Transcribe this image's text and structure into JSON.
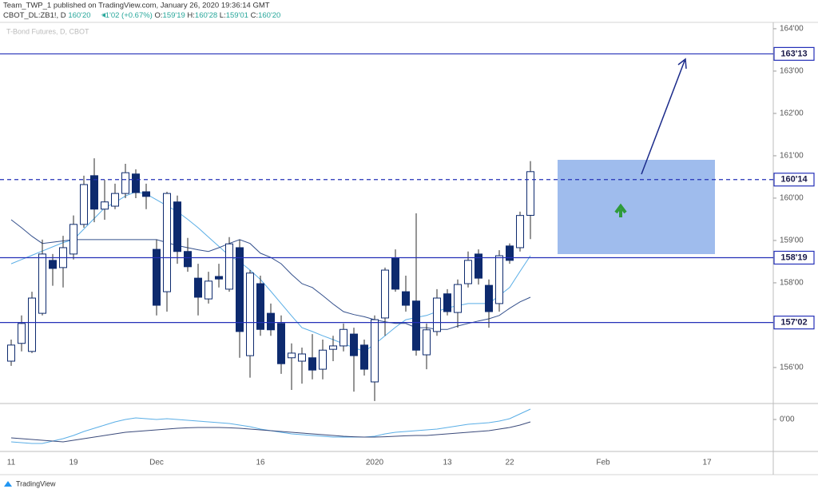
{
  "header": {
    "publisher": "Team_TWP_1 published on TradingView.com, January 26, 2020 19:36:14 GMT",
    "symbol": "CBOT_DL:ZB1!, D",
    "last": "160'20",
    "change": "+1'02 (+0.67%)",
    "o_label": "O:",
    "o": "159'19",
    "h_label": "H:",
    "h": "160'28",
    "l_label": "L:",
    "l": "159'01",
    "c_label": "C:",
    "c": "160'20"
  },
  "footer": {
    "brand": "TradingView"
  },
  "chart_data": [
    {
      "type": "candlestick",
      "title": "T-Bond Futures, D, CBOT",
      "categories": [
        "11",
        null,
        null,
        null,
        null,
        null,
        "19",
        null,
        null,
        null,
        null,
        null,
        null,
        null,
        "Dec",
        null,
        null,
        null,
        null,
        null,
        null,
        null,
        null,
        null,
        "16",
        null,
        null,
        null,
        null,
        null,
        null,
        null,
        null,
        null,
        null,
        "2020",
        null,
        null,
        null,
        null,
        null,
        null,
        "13",
        null,
        null,
        null,
        null,
        null,
        "22",
        null,
        null,
        null,
        null,
        null,
        null,
        null,
        null,
        "Feb",
        null,
        null,
        null,
        null,
        null,
        null,
        null,
        null,
        null,
        "17"
      ],
      "open": [
        156.15,
        156.57,
        156.38,
        157.28,
        158.53,
        158.36,
        158.68,
        159.38,
        160.53,
        159.74,
        159.81,
        160.11,
        160.57,
        160.15,
        158.79,
        157.79,
        159.91,
        158.74,
        158.11,
        157.62,
        158.15,
        157.85,
        158.83,
        156.28,
        157.98,
        157.28,
        157.04,
        156.23,
        156.15,
        156.23,
        155.96,
        156.43,
        156.51,
        156.79,
        156.53,
        155.66,
        157.17,
        158.59,
        157.79,
        157.57,
        156.3,
        156.85,
        157.74,
        157.3,
        157.98,
        158.68,
        157.94,
        157.51,
        158.87,
        158.83,
        159.59375,
        null,
        null,
        null,
        null,
        null,
        null,
        null,
        null,
        null,
        null,
        null,
        null,
        null,
        null,
        null,
        null,
        null
      ],
      "high": [
        156.66,
        157.23,
        157.79,
        159.02,
        158.68,
        159.11,
        159.59,
        160.53,
        160.94,
        160.43,
        160.34,
        160.81,
        160.68,
        160.34,
        159.02,
        160.15,
        160.06,
        159.06,
        158.45,
        158.26,
        158.45,
        159.08,
        159.02,
        158.3,
        158.17,
        157.51,
        157.23,
        156.57,
        156.47,
        156.79,
        156.66,
        156.75,
        157.04,
        156.94,
        156.66,
        157.23,
        158.36,
        158.79,
        158.17,
        159.64,
        157.04,
        157.85,
        157.85,
        158.08,
        158.74,
        158.79,
        158.08,
        158.77,
        158.93,
        159.68,
        160.875,
        null,
        null,
        null,
        null,
        null,
        null,
        null,
        null,
        null,
        null,
        null,
        null,
        null,
        null,
        null,
        null,
        null
      ],
      "low": [
        156.04,
        156.38,
        156.34,
        157.23,
        157.93,
        157.89,
        158.55,
        159.3,
        159.43,
        159.49,
        159.74,
        160.0,
        160.0,
        159.74,
        157.23,
        157.32,
        158.45,
        158.26,
        157.23,
        157.51,
        157.89,
        157.79,
        156.23,
        155.76,
        156.75,
        156.75,
        155.85,
        155.47,
        155.62,
        155.72,
        155.72,
        156.15,
        156.38,
        155.43,
        155.81,
        155.21,
        156.75,
        157.79,
        157.32,
        156.28,
        155.96,
        156.75,
        157.23,
        156.94,
        157.89,
        157.96,
        156.94,
        157.32,
        158.45,
        158.74,
        159.03125,
        null,
        null,
        null,
        null,
        null,
        null,
        null,
        null,
        null,
        null,
        null,
        null,
        null,
        null,
        null,
        null,
        null
      ],
      "close": [
        156.53,
        157.04,
        157.64,
        158.68,
        158.34,
        158.83,
        159.38,
        160.32,
        159.74,
        159.91,
        160.11,
        160.6,
        160.13,
        160.04,
        157.47,
        160.11,
        158.74,
        158.38,
        157.66,
        158.04,
        158.09,
        158.92,
        156.85,
        158.23,
        156.9,
        156.89,
        156.09,
        156.34,
        156.32,
        155.94,
        156.41,
        156.51,
        156.9,
        156.28,
        155.96,
        157.13,
        158.3,
        157.85,
        157.47,
        156.41,
        156.89,
        157.64,
        157.32,
        157.96,
        158.53,
        158.11,
        157.32,
        158.64,
        158.53,
        159.59,
        160.625,
        null,
        null,
        null,
        null,
        null,
        null,
        null,
        null,
        null,
        null,
        null,
        null,
        null,
        null,
        null,
        null,
        null
      ],
      "up_color": "#ffffff",
      "down_color": "#0d2a6e",
      "border_color": "#0d2a6e",
      "wick_color": "#2b2b2b",
      "series": [
        {
          "color": "#5aaee6",
          "values": [
            158.45,
            158.55,
            158.65,
            158.75,
            158.85,
            158.95,
            159.02,
            159.27,
            159.52,
            159.77,
            159.9,
            160.05,
            160.15,
            160.1,
            159.96,
            159.82,
            159.68,
            159.5,
            159.3,
            159.08,
            158.86,
            158.64,
            158.5,
            158.3,
            158.08,
            157.8,
            157.51,
            157.22,
            156.94,
            156.85,
            156.75,
            156.66,
            156.56,
            156.47,
            156.38,
            156.55,
            156.75,
            156.95,
            157.13,
            157.18,
            157.23,
            157.32,
            157.41,
            157.46,
            157.51,
            157.51,
            157.51,
            157.7,
            157.89,
            158.27,
            158.64,
            null,
            null,
            null,
            null,
            null,
            null,
            null,
            null,
            null,
            null,
            null,
            null,
            null,
            null,
            null,
            null,
            null
          ]
        },
        {
          "color": "#34508c",
          "values": [
            159.49,
            159.3,
            159.1,
            158.93,
            158.96,
            158.99,
            159.02,
            159.02,
            159.02,
            159.02,
            159.02,
            159.02,
            159.02,
            159.02,
            159.02,
            158.95,
            158.88,
            158.83,
            158.78,
            158.74,
            158.83,
            158.93,
            159.02,
            158.93,
            158.7,
            158.6,
            158.45,
            158.2,
            157.98,
            157.89,
            157.7,
            157.5,
            157.32,
            157.25,
            157.2,
            157.13,
            157.08,
            157.04,
            157.04,
            156.94,
            156.94,
            156.9,
            156.9,
            156.98,
            157.04,
            157.1,
            157.15,
            157.23,
            157.4,
            157.55,
            157.66,
            null,
            null,
            null,
            null,
            null,
            null,
            null,
            null,
            null,
            null,
            null,
            null,
            null,
            null,
            null,
            null,
            null
          ]
        }
      ],
      "ylim": [
        155.15,
        164.15
      ],
      "yticks": [
        {
          "value": 156,
          "label": "156'00"
        },
        {
          "value": 157,
          "label": "157'00"
        },
        {
          "value": 158,
          "label": "158'00"
        },
        {
          "value": 159,
          "label": "159'00"
        },
        {
          "value": 160,
          "label": "160'00"
        },
        {
          "value": 161,
          "label": "161'00"
        },
        {
          "value": 162,
          "label": "162'00"
        },
        {
          "value": 163,
          "label": "163'00"
        },
        {
          "value": 164,
          "label": "164'00"
        }
      ],
      "hline_color": "#2430b8",
      "hlines": [
        {
          "value": 163.40625,
          "label": "163'13",
          "style": "solid"
        },
        {
          "value": 160.4375,
          "label": "160'14",
          "style": "dashed"
        },
        {
          "value": 158.59375,
          "label": "158'19",
          "style": "solid"
        },
        {
          "value": 157.0625,
          "label": "157'02",
          "style": "solid"
        }
      ]
    },
    {
      "type": "line",
      "ylim": [
        -2,
        1
      ],
      "yticks": [
        {
          "value": 0,
          "label": "0'00"
        }
      ],
      "series": [
        {
          "color": "#5aaee6",
          "values": [
            -1.4,
            -1.45,
            -1.5,
            -1.5,
            -1.35,
            -1.2,
            -1.0,
            -0.75,
            -0.55,
            -0.35,
            -0.15,
            0,
            0.1,
            0.05,
            0,
            0.05,
            0,
            -0.05,
            -0.1,
            -0.15,
            -0.2,
            -0.25,
            -0.35,
            -0.45,
            -0.6,
            -0.7,
            -0.8,
            -0.9,
            -0.95,
            -1.0,
            -1.05,
            -1.1,
            -1.1,
            -1.1,
            -1.1,
            -1.05,
            -0.9,
            -0.8,
            -0.75,
            -0.7,
            -0.65,
            -0.6,
            -0.5,
            -0.4,
            -0.3,
            -0.25,
            -0.2,
            -0.1,
            0.05,
            0.35,
            0.65,
            null,
            null,
            null,
            null,
            null,
            null,
            null,
            null,
            null,
            null,
            null,
            null,
            null,
            null,
            null,
            null,
            null
          ]
        },
        {
          "color": "#3a4a7a",
          "values": [
            -1.15,
            -1.2,
            -1.25,
            -1.3,
            -1.35,
            -1.4,
            -1.3,
            -1.2,
            -1.1,
            -1.0,
            -0.9,
            -0.8,
            -0.75,
            -0.7,
            -0.65,
            -0.6,
            -0.55,
            -0.52,
            -0.5,
            -0.5,
            -0.5,
            -0.52,
            -0.55,
            -0.6,
            -0.65,
            -0.7,
            -0.75,
            -0.8,
            -0.85,
            -0.9,
            -0.95,
            -1.0,
            -1.05,
            -1.08,
            -1.1,
            -1.1,
            -1.08,
            -1.05,
            -1.02,
            -1.0,
            -1.0,
            -0.95,
            -0.9,
            -0.85,
            -0.8,
            -0.75,
            -0.7,
            -0.6,
            -0.5,
            -0.35,
            -0.15,
            null,
            null,
            null,
            null,
            null,
            null,
            null,
            null,
            null,
            null,
            null,
            null,
            null,
            null,
            null,
            null,
            null
          ]
        }
      ]
    }
  ]
}
